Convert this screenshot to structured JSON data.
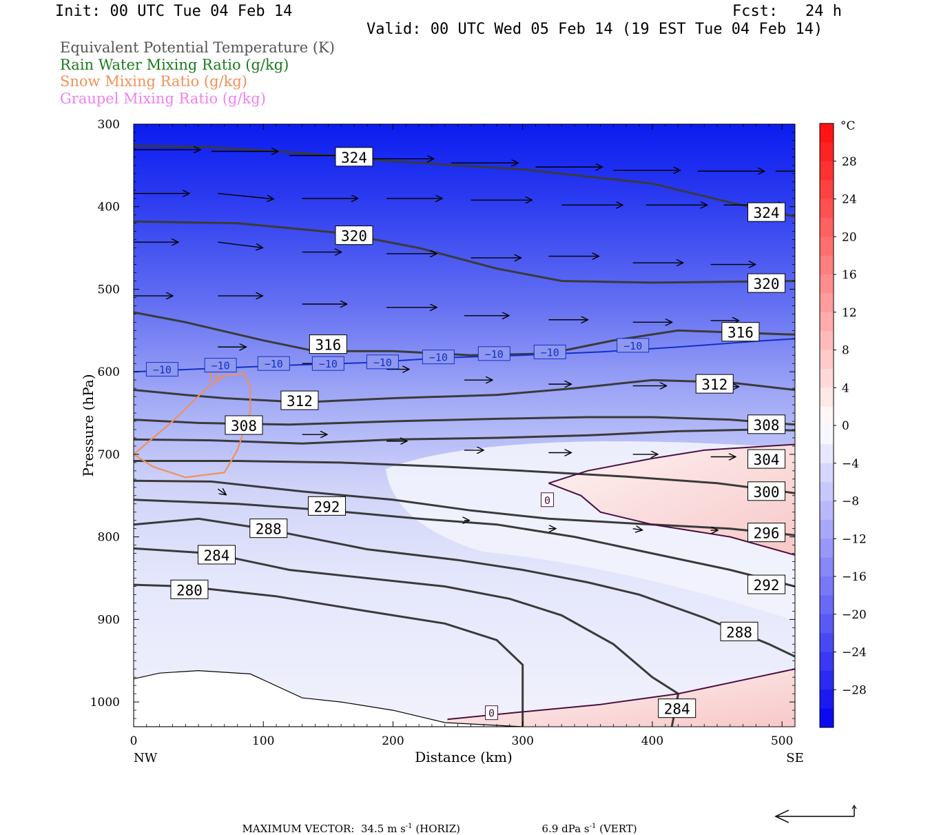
{
  "header": {
    "init": "Init: 00 UTC Tue 04 Feb 14",
    "fcst": "Fcst:   24 h",
    "valid": "Valid: 00 UTC Wed 05 Feb 14 (19 EST Tue 04 Feb 14)"
  },
  "legend": [
    {
      "label": "Equivalent Potential Temperature (K)",
      "color": "#555555"
    },
    {
      "label": "Rain Water Mixing Ratio (g/kg)",
      "color": "#1a7a1a"
    },
    {
      "label": "Snow Mixing Ratio (g/kg)",
      "color": "#f0905a"
    },
    {
      "label": "Graupel Mixing Ratio (g/kg)",
      "color": "#ee82ee"
    }
  ],
  "footer": {
    "max_vector_label": "MAXIMUM VECTOR:",
    "horiz": "34.5 m s",
    "horiz_unit": " (HORIZ)",
    "vert": "6.9 dPa s",
    "vert_unit": " (VERT)",
    "exp": "-1"
  },
  "chart_data": {
    "type": "cross-section",
    "xlabel": "Distance (km)",
    "ylabel": "Pressure (hPa)",
    "x_ticks": [
      0,
      100,
      200,
      300,
      400,
      500
    ],
    "x_end_labels": {
      "left": "NW",
      "right": "SE"
    },
    "y_ticks": [
      300,
      400,
      500,
      600,
      700,
      800,
      900,
      1000
    ],
    "xlim": [
      0,
      510
    ],
    "ylim": [
      300,
      1030
    ],
    "colorbar": {
      "unit": "°C",
      "tick_labels": [
        "28",
        "24",
        "20",
        "16",
        "12",
        "8",
        "4",
        "0",
        "−4",
        "−8",
        "−12",
        "−16",
        "−20",
        "−24",
        "−28"
      ],
      "range": [
        -32,
        32
      ]
    },
    "theta_e_contours": [
      {
        "value": 324,
        "points": [
          [
            0,
            326
          ],
          [
            60,
            328
          ],
          [
            130,
            335
          ],
          [
            200,
            345
          ],
          [
            300,
            355
          ],
          [
            400,
            372
          ],
          [
            460,
            395
          ],
          [
            510,
            412
          ]
        ]
      },
      {
        "value": 320,
        "points": [
          [
            0,
            418
          ],
          [
            80,
            420
          ],
          [
            160,
            432
          ],
          [
            220,
            450
          ],
          [
            280,
            475
          ],
          [
            330,
            490
          ],
          [
            400,
            492
          ],
          [
            510,
            490
          ]
        ]
      },
      {
        "value": 316,
        "points": [
          [
            0,
            528
          ],
          [
            40,
            540
          ],
          [
            100,
            562
          ],
          [
            140,
            575
          ],
          [
            200,
            575
          ],
          [
            260,
            580
          ],
          [
            320,
            578
          ],
          [
            370,
            562
          ],
          [
            420,
            550
          ],
          [
            510,
            555
          ]
        ]
      },
      {
        "value": 312,
        "points": [
          [
            0,
            622
          ],
          [
            40,
            628
          ],
          [
            70,
            632
          ],
          [
            130,
            637
          ],
          [
            200,
            632
          ],
          [
            280,
            628
          ],
          [
            340,
            620
          ],
          [
            400,
            610
          ],
          [
            460,
            613
          ],
          [
            510,
            622
          ]
        ]
      },
      {
        "value": 308,
        "points": [
          [
            0,
            658
          ],
          [
            50,
            662
          ],
          [
            120,
            664
          ],
          [
            200,
            660
          ],
          [
            280,
            657
          ],
          [
            350,
            655
          ],
          [
            400,
            655
          ],
          [
            460,
            658
          ],
          [
            510,
            664
          ]
        ]
      },
      {
        "value": 304,
        "points": [
          [
            0,
            682
          ],
          [
            60,
            683
          ],
          [
            130,
            687
          ],
          [
            200,
            682
          ],
          [
            280,
            680
          ],
          [
            350,
            677
          ],
          [
            420,
            672
          ],
          [
            480,
            670
          ],
          [
            510,
            671
          ]
        ]
      },
      {
        "value": 300,
        "points": [
          [
            0,
            708
          ],
          [
            80,
            708
          ],
          [
            160,
            710
          ],
          [
            240,
            715
          ],
          [
            300,
            720
          ],
          [
            380,
            727
          ],
          [
            450,
            735
          ],
          [
            510,
            747
          ]
        ]
      },
      {
        "value": 296,
        "points": [
          [
            0,
            732
          ],
          [
            60,
            733
          ],
          [
            130,
            745
          ],
          [
            200,
            755
          ],
          [
            260,
            768
          ],
          [
            320,
            778
          ],
          [
            400,
            785
          ],
          [
            460,
            790
          ],
          [
            510,
            798
          ]
        ]
      },
      {
        "value": 292,
        "points": [
          [
            0,
            755
          ],
          [
            80,
            760
          ],
          [
            150,
            768
          ],
          [
            220,
            778
          ],
          [
            280,
            785
          ],
          [
            340,
            800
          ],
          [
            400,
            820
          ],
          [
            460,
            840
          ],
          [
            510,
            860
          ]
        ]
      },
      {
        "value": 288,
        "points": [
          [
            0,
            785
          ],
          [
            50,
            778
          ],
          [
            100,
            790
          ],
          [
            180,
            815
          ],
          [
            250,
            828
          ],
          [
            300,
            840
          ],
          [
            350,
            855
          ],
          [
            390,
            870
          ],
          [
            440,
            898
          ],
          [
            490,
            930
          ],
          [
            510,
            945
          ]
        ]
      },
      {
        "value": 284,
        "points": [
          [
            0,
            814
          ],
          [
            60,
            820
          ],
          [
            120,
            840
          ],
          [
            180,
            850
          ],
          [
            240,
            860
          ],
          [
            290,
            875
          ],
          [
            330,
            895
          ],
          [
            370,
            930
          ],
          [
            400,
            970
          ],
          [
            420,
            990
          ],
          [
            415,
            1030
          ]
        ]
      },
      {
        "value": 280,
        "points": [
          [
            0,
            858
          ],
          [
            40,
            860
          ],
          [
            110,
            872
          ],
          [
            180,
            890
          ],
          [
            240,
            905
          ],
          [
            280,
            925
          ],
          [
            300,
            955
          ],
          [
            300,
            990
          ],
          [
            300,
            1030
          ]
        ]
      }
    ],
    "theta_e_labels": [
      {
        "text": "324",
        "x": 170,
        "y": 340
      },
      {
        "text": "324",
        "x": 488,
        "y": 407
      },
      {
        "text": "320",
        "x": 170,
        "y": 435
      },
      {
        "text": "320",
        "x": 488,
        "y": 493
      },
      {
        "text": "316",
        "x": 150,
        "y": 567
      },
      {
        "text": "316",
        "x": 468,
        "y": 552
      },
      {
        "text": "312",
        "x": 128,
        "y": 635
      },
      {
        "text": "312",
        "x": 448,
        "y": 615
      },
      {
        "text": "308",
        "x": 85,
        "y": 665
      },
      {
        "text": "308",
        "x": 488,
        "y": 664
      },
      {
        "text": "304",
        "x": 488,
        "y": 706
      },
      {
        "text": "300",
        "x": 488,
        "y": 745
      },
      {
        "text": "296",
        "x": 488,
        "y": 795
      },
      {
        "text": "292",
        "x": 149,
        "y": 763
      },
      {
        "text": "292",
        "x": 488,
        "y": 858
      },
      {
        "text": "288",
        "x": 104,
        "y": 790
      },
      {
        "text": "288",
        "x": 467,
        "y": 915
      },
      {
        "text": "284",
        "x": 64,
        "y": 822
      },
      {
        "text": "284",
        "x": 419,
        "y": 1008
      },
      {
        "text": "280",
        "x": 43,
        "y": 864
      }
    ],
    "isotherm_minus10": {
      "value": -10,
      "points": [
        [
          0,
          600
        ],
        [
          60,
          596
        ],
        [
          120,
          592
        ],
        [
          180,
          589
        ],
        [
          240,
          583
        ],
        [
          300,
          580
        ],
        [
          360,
          576
        ],
        [
          420,
          570
        ],
        [
          480,
          563
        ],
        [
          510,
          560
        ]
      ],
      "labels": [
        [
          22,
          597
        ],
        [
          67,
          592
        ],
        [
          108,
          590
        ],
        [
          150,
          590
        ],
        [
          192,
          588
        ],
        [
          235,
          582
        ],
        [
          278,
          578
        ],
        [
          321,
          576
        ],
        [
          385,
          568
        ]
      ]
    },
    "isotherm_zero": {
      "value": 0,
      "upper": [
        [
          320,
          735
        ],
        [
          350,
          720
        ],
        [
          400,
          705
        ],
        [
          440,
          695
        ],
        [
          510,
          688
        ]
      ],
      "lower_from": [
        [
          320,
          735
        ],
        [
          345,
          750
        ],
        [
          360,
          770
        ],
        [
          400,
          785
        ],
        [
          460,
          800
        ],
        [
          510,
          822
        ]
      ],
      "bottom": [
        [
          242,
          1021
        ],
        [
          300,
          1012
        ],
        [
          360,
          1003
        ],
        [
          420,
          990
        ],
        [
          480,
          970
        ],
        [
          510,
          960
        ]
      ],
      "labels": [
        [
          319,
          755
        ],
        [
          276,
          1013
        ]
      ]
    },
    "snow_region": {
      "points": [
        [
          0,
          700
        ],
        [
          30,
          660
        ],
        [
          55,
          622
        ],
        [
          70,
          605
        ],
        [
          85,
          602
        ],
        [
          90,
          618
        ],
        [
          90,
          648
        ],
        [
          80,
          695
        ],
        [
          70,
          722
        ],
        [
          40,
          728
        ],
        [
          15,
          715
        ],
        [
          0,
          700
        ]
      ],
      "label": "10",
      "label_pos": [
        62,
        605
      ]
    },
    "terrain": [
      [
        0,
        972
      ],
      [
        20,
        965
      ],
      [
        50,
        962
      ],
      [
        90,
        966
      ],
      [
        130,
        995
      ],
      [
        160,
        1000
      ],
      [
        200,
        1010
      ],
      [
        240,
        1025
      ],
      [
        300,
        1030
      ]
    ],
    "wind_vectors": [
      {
        "x": 0,
        "p": 331,
        "u": 60,
        "w": 0
      },
      {
        "x": 60,
        "p": 333,
        "u": 60,
        "w": 0
      },
      {
        "x": 120,
        "p": 338,
        "u": 60,
        "w": 0
      },
      {
        "x": 180,
        "p": 342,
        "u": 60,
        "w": 0
      },
      {
        "x": 245,
        "p": 347,
        "u": 60,
        "w": 0
      },
      {
        "x": 310,
        "p": 352,
        "u": 60,
        "w": 0
      },
      {
        "x": 370,
        "p": 356,
        "u": 60,
        "w": 0
      },
      {
        "x": 435,
        "p": 357,
        "u": 60,
        "w": 0
      },
      {
        "x": 495,
        "p": 357,
        "u": 45,
        "w": 0
      },
      {
        "x": 0,
        "p": 384,
        "u": 50,
        "w": 0
      },
      {
        "x": 65,
        "p": 384,
        "u": 50,
        "w": 4
      },
      {
        "x": 130,
        "p": 390,
        "u": 50,
        "w": 0
      },
      {
        "x": 195,
        "p": 390,
        "u": 50,
        "w": 0
      },
      {
        "x": 260,
        "p": 392,
        "u": 55,
        "w": 0
      },
      {
        "x": 330,
        "p": 398,
        "u": 55,
        "w": 0
      },
      {
        "x": 395,
        "p": 398,
        "u": 55,
        "w": 0
      },
      {
        "x": 455,
        "p": 398,
        "u": 55,
        "w": 0
      },
      {
        "x": 0,
        "p": 443,
        "u": 40,
        "w": 0
      },
      {
        "x": 65,
        "p": 443,
        "u": 40,
        "w": 4
      },
      {
        "x": 130,
        "p": 455,
        "u": 35,
        "w": 0
      },
      {
        "x": 195,
        "p": 457,
        "u": 45,
        "w": 0
      },
      {
        "x": 260,
        "p": 462,
        "u": 45,
        "w": 0
      },
      {
        "x": 320,
        "p": 460,
        "u": 45,
        "w": 0
      },
      {
        "x": 385,
        "p": 468,
        "u": 45,
        "w": 0
      },
      {
        "x": 445,
        "p": 470,
        "u": 40,
        "w": 0
      },
      {
        "x": 0,
        "p": 508,
        "u": 35,
        "w": 0
      },
      {
        "x": 65,
        "p": 508,
        "u": 40,
        "w": 0
      },
      {
        "x": 130,
        "p": 518,
        "u": 40,
        "w": 0
      },
      {
        "x": 195,
        "p": 522,
        "u": 45,
        "w": 0
      },
      {
        "x": 255,
        "p": 532,
        "u": 40,
        "w": 0
      },
      {
        "x": 320,
        "p": 537,
        "u": 35,
        "w": 0
      },
      {
        "x": 385,
        "p": 540,
        "u": 35,
        "w": 0
      },
      {
        "x": 445,
        "p": 538,
        "u": 25,
        "w": 0
      },
      {
        "x": 65,
        "p": 570,
        "u": 25,
        "w": 0
      },
      {
        "x": 130,
        "p": 590,
        "u": 30,
        "w": 0
      },
      {
        "x": 195,
        "p": 597,
        "u": 20,
        "w": 0
      },
      {
        "x": 255,
        "p": 610,
        "u": 25,
        "w": 0
      },
      {
        "x": 320,
        "p": 615,
        "u": 20,
        "w": 0
      },
      {
        "x": 385,
        "p": 617,
        "u": 30,
        "w": 0
      },
      {
        "x": 445,
        "p": 618,
        "u": 25,
        "w": 0
      },
      {
        "x": 130,
        "p": 676,
        "u": 22,
        "w": 0
      },
      {
        "x": 195,
        "p": 684,
        "u": 18,
        "w": 0
      },
      {
        "x": 255,
        "p": 695,
        "u": 17,
        "w": 0
      },
      {
        "x": 320,
        "p": 698,
        "u": 20,
        "w": 0
      },
      {
        "x": 385,
        "p": 700,
        "u": 22,
        "w": 0
      },
      {
        "x": 445,
        "p": 703,
        "u": 22,
        "w": 0
      },
      {
        "x": 65,
        "p": 742,
        "u": 7,
        "w": 4
      },
      {
        "x": 255,
        "p": 780,
        "u": 4,
        "w": 0
      },
      {
        "x": 320,
        "p": 790,
        "u": 6,
        "w": 0
      },
      {
        "x": 385,
        "p": 790,
        "u": 8,
        "w": 1
      },
      {
        "x": 445,
        "p": 792,
        "u": 6,
        "w": 0
      }
    ]
  }
}
